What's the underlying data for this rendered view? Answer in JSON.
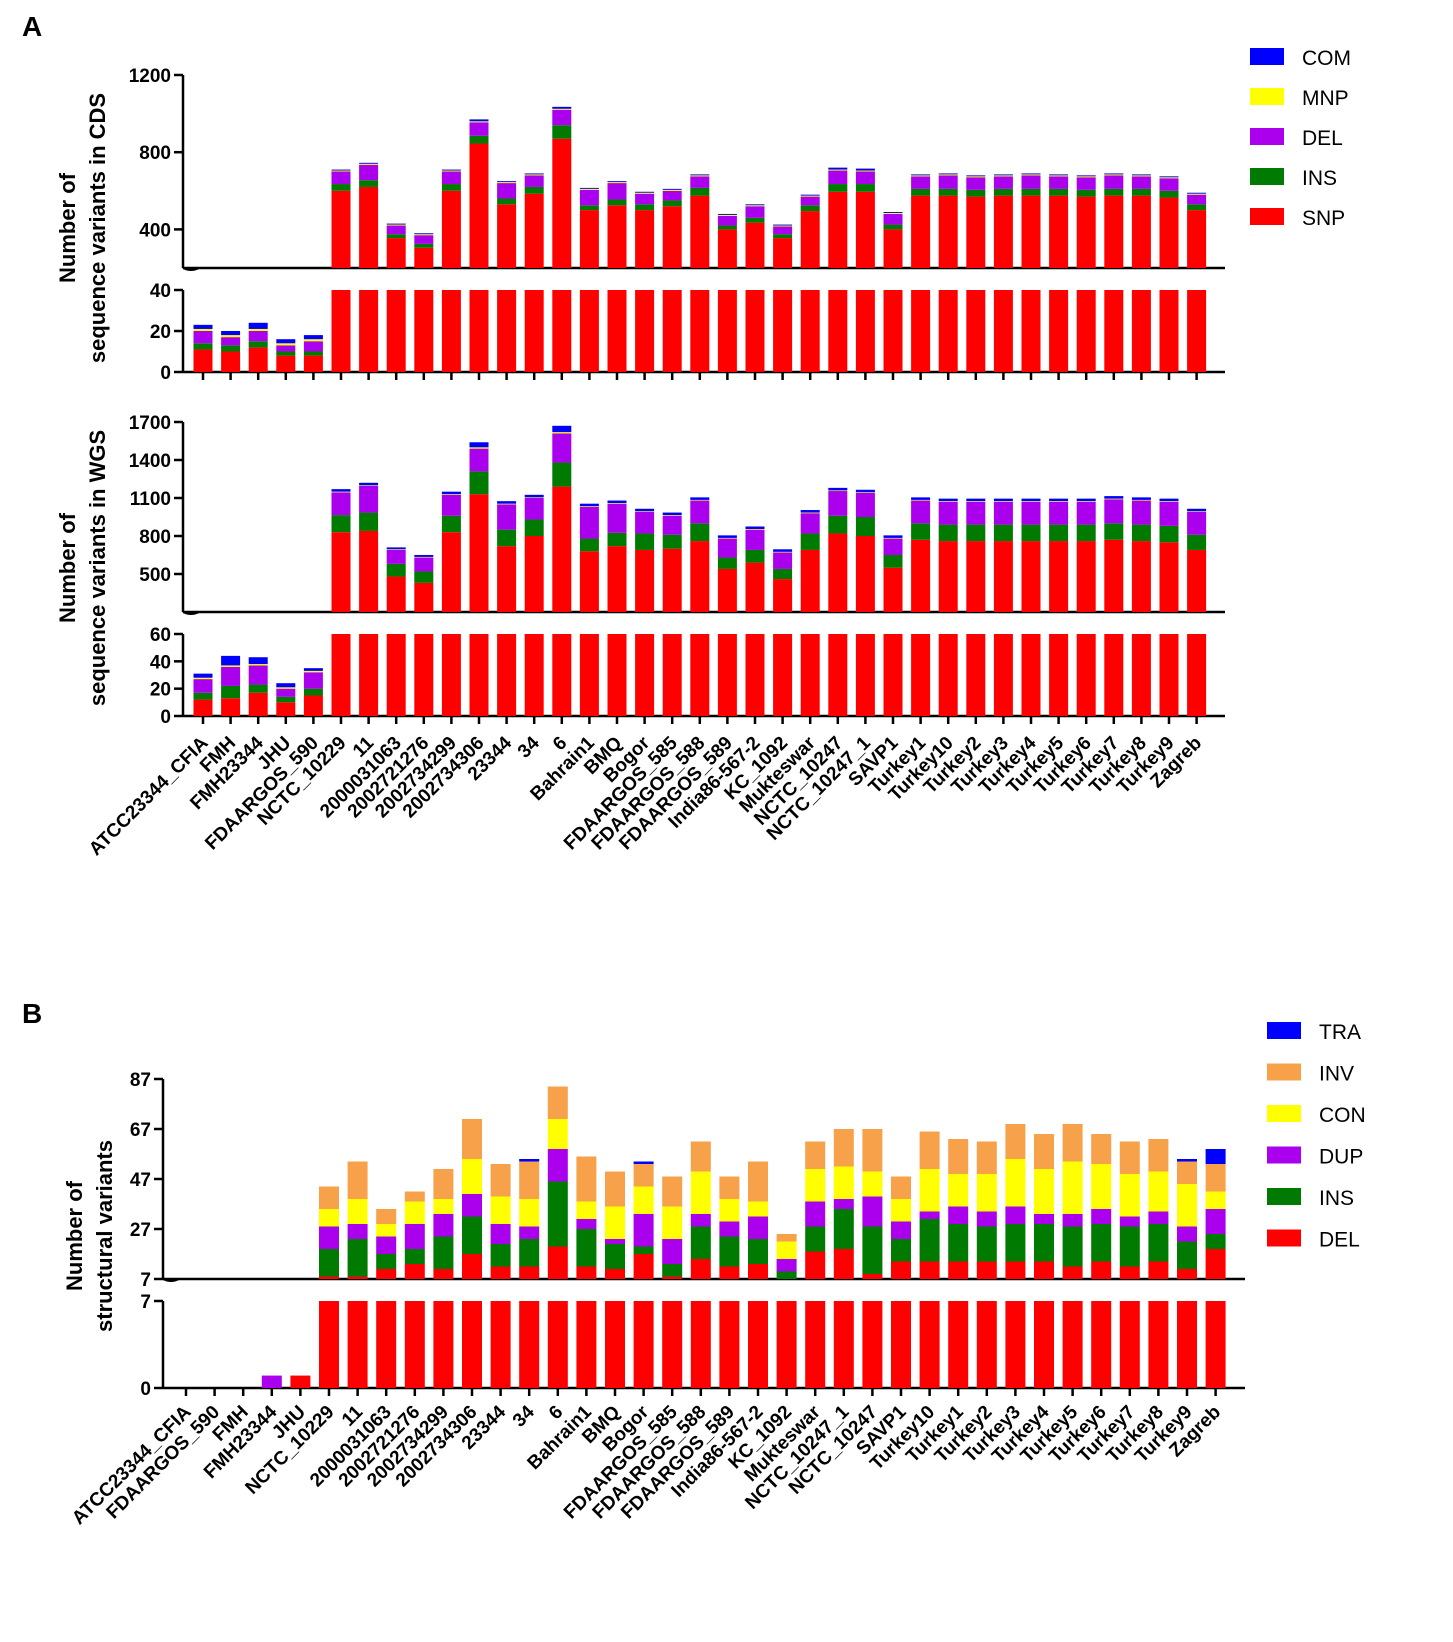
{
  "panel_labels": [
    "A",
    "B"
  ],
  "colors": {
    "COM": "#0000ff",
    "MNP": "#ffff00",
    "DEL_A": "#aa00ee",
    "INS_A": "#007a00",
    "SNP": "#ff0000",
    "TRA": "#0000ff",
    "INV": "#f7a24a",
    "CON": "#ffff00",
    "DUP": "#aa00ee",
    "INS_B": "#007a00",
    "DEL_B": "#ff0000"
  },
  "chart_data": [
    {
      "type": "bar",
      "stacked": true,
      "title": "",
      "ylabel": [
        "Number of",
        "sequence variants in CDS"
      ],
      "axis_break": true,
      "lower_ylim": [
        0,
        40
      ],
      "lower_ticks": [
        "0",
        "20",
        "40"
      ],
      "upper_ylim": [
        200,
        1200
      ],
      "upper_ticks": [
        "400",
        "800",
        "1200"
      ],
      "legend": [
        "COM",
        "MNP",
        "DEL",
        "INS",
        "SNP"
      ],
      "categories": [
        "ATCC23344_CFIA",
        "FMH",
        "FMH23344",
        "JHU",
        "FDAARGOS_590",
        "NCTC_10229",
        "11",
        "2000031063",
        "2002721276",
        "2002734299",
        "2002734306",
        "23344",
        "34",
        "6",
        "Bahrain1",
        "BMQ",
        "Bogor",
        "FDAARGOS_585",
        "FDAARGOS_588",
        "FDAARGOS_589",
        "India86-567-2",
        "KC_1092",
        "Mukteswar",
        "NCTC_10247",
        "NCTC_10247_1",
        "SAVP1",
        "Turkey1",
        "Turkey10",
        "Turkey2",
        "Turkey3",
        "Turkey4",
        "Turkey5",
        "Turkey6",
        "Turkey7",
        "Turkey8",
        "Turkey9",
        "Zagreb"
      ],
      "series": [
        {
          "name": "SNP",
          "values": [
            11,
            10,
            12,
            8,
            8,
            600,
            620,
            355,
            305,
            600,
            845,
            530,
            585,
            870,
            500,
            525,
            500,
            520,
            575,
            400,
            435,
            355,
            495,
            595,
            595,
            400,
            575,
            575,
            570,
            575,
            575,
            575,
            570,
            575,
            575,
            565,
            500
          ]
        },
        {
          "name": "INS",
          "values": [
            3,
            3,
            3,
            2,
            2,
            35,
            35,
            20,
            20,
            35,
            40,
            30,
            35,
            70,
            25,
            30,
            30,
            30,
            40,
            20,
            25,
            20,
            30,
            40,
            40,
            25,
            35,
            35,
            35,
            35,
            35,
            35,
            35,
            35,
            35,
            35,
            30
          ]
        },
        {
          "name": "DEL",
          "values": [
            6,
            4,
            5,
            3,
            5,
            65,
            80,
            45,
            45,
            65,
            70,
            80,
            60,
            80,
            80,
            85,
            55,
            50,
            60,
            50,
            60,
            40,
            45,
            70,
            65,
            55,
            65,
            70,
            65,
            65,
            70,
            65,
            65,
            70,
            65,
            65,
            50
          ]
        },
        {
          "name": "MNP",
          "values": [
            1,
            1,
            1,
            1,
            1,
            5,
            5,
            5,
            5,
            5,
            5,
            5,
            5,
            5,
            5,
            5,
            5,
            5,
            5,
            5,
            5,
            5,
            5,
            5,
            5,
            5,
            5,
            5,
            5,
            5,
            5,
            5,
            5,
            5,
            5,
            5,
            5
          ]
        },
        {
          "name": "COM",
          "values": [
            2,
            2,
            3,
            2,
            2,
            5,
            5,
            5,
            5,
            5,
            10,
            5,
            5,
            10,
            5,
            5,
            5,
            5,
            5,
            5,
            5,
            5,
            5,
            10,
            10,
            5,
            5,
            5,
            5,
            5,
            5,
            5,
            5,
            5,
            5,
            5,
            5
          ]
        }
      ]
    },
    {
      "type": "bar",
      "stacked": true,
      "title": "",
      "ylabel": [
        "Number of",
        "sequence variants in WGS"
      ],
      "axis_break": true,
      "lower_ylim": [
        0,
        60
      ],
      "lower_ticks": [
        "0",
        "20",
        "40",
        "60"
      ],
      "upper_ylim": [
        200,
        1700
      ],
      "upper_ticks": [
        "500",
        "800",
        "1100",
        "1400",
        "1700"
      ],
      "categories": [
        "ATCC23344_CFIA",
        "FMH",
        "FMH23344",
        "JHU",
        "FDAARGOS_590",
        "NCTC_10229",
        "11",
        "2000031063",
        "2002721276",
        "2002734299",
        "2002734306",
        "23344",
        "34",
        "6",
        "Bahrain1",
        "BMQ",
        "Bogor",
        "FDAARGOS_585",
        "FDAARGOS_588",
        "FDAARGOS_589",
        "India86-567-2",
        "KC_1092",
        "Mukteswar",
        "NCTC_10247",
        "NCTC_10247_1",
        "SAVP1",
        "Turkey1",
        "Turkey10",
        "Turkey2",
        "Turkey3",
        "Turkey4",
        "Turkey5",
        "Turkey6",
        "Turkey7",
        "Turkey8",
        "Turkey9",
        "Zagreb"
      ],
      "series": [
        {
          "name": "SNP",
          "values": [
            12,
            13,
            17,
            10,
            15,
            830,
            840,
            480,
            430,
            830,
            1130,
            720,
            800,
            1190,
            680,
            720,
            690,
            700,
            760,
            540,
            590,
            460,
            690,
            820,
            800,
            550,
            770,
            760,
            760,
            760,
            760,
            760,
            760,
            770,
            760,
            750,
            690
          ]
        },
        {
          "name": "INS",
          "values": [
            5,
            9,
            6,
            4,
            5,
            135,
            145,
            100,
            90,
            130,
            180,
            130,
            130,
            190,
            100,
            105,
            130,
            110,
            140,
            90,
            100,
            80,
            130,
            140,
            150,
            100,
            130,
            130,
            130,
            130,
            130,
            130,
            130,
            130,
            130,
            130,
            120
          ]
        },
        {
          "name": "DEL",
          "values": [
            10,
            14,
            14,
            6,
            12,
            180,
            210,
            110,
            110,
            165,
            180,
            200,
            170,
            230,
            250,
            230,
            170,
            150,
            180,
            150,
            160,
            130,
            160,
            195,
            190,
            130,
            180,
            180,
            180,
            180,
            180,
            180,
            180,
            190,
            190,
            190,
            180
          ]
        },
        {
          "name": "MNP",
          "values": [
            1,
            1,
            1,
            1,
            1,
            5,
            5,
            5,
            5,
            5,
            10,
            5,
            5,
            10,
            5,
            5,
            5,
            5,
            5,
            5,
            5,
            5,
            5,
            5,
            5,
            5,
            5,
            5,
            5,
            5,
            5,
            5,
            5,
            5,
            5,
            5,
            5
          ]
        },
        {
          "name": "COM",
          "values": [
            3,
            7,
            5,
            3,
            2,
            20,
            20,
            15,
            15,
            20,
            40,
            20,
            20,
            50,
            20,
            20,
            20,
            20,
            20,
            20,
            20,
            20,
            20,
            20,
            20,
            20,
            20,
            20,
            20,
            20,
            20,
            20,
            20,
            20,
            20,
            20,
            20
          ]
        }
      ]
    },
    {
      "type": "bar",
      "stacked": true,
      "title": "",
      "ylabel": [
        "Number of",
        "structural variants"
      ],
      "axis_break": true,
      "lower_ylim": [
        0,
        7
      ],
      "lower_ticks": [
        "0",
        "7"
      ],
      "upper_ylim": [
        7,
        87
      ],
      "upper_ticks": [
        "7",
        "27",
        "47",
        "67",
        "87"
      ],
      "legend": [
        "TRA",
        "INV",
        "CON",
        "DUP",
        "INS",
        "DEL"
      ],
      "categories": [
        "ATCC23344_CFIA",
        "FDAARGOS_590",
        "FMH",
        "FMH23344",
        "JHU",
        "NCTC_10229",
        "11",
        "2000031063",
        "2002721276",
        "2002734299",
        "2002734306",
        "23344",
        "34",
        "6",
        "Bahrain1",
        "BMQ",
        "Bogor",
        "FDAARGOS_585",
        "FDAARGOS_588",
        "FDAARGOS_589",
        "India86-567-2",
        "KC_1092",
        "Mukteswar",
        "NCTC_10247_1",
        "NCTC_10247",
        "SAVP1",
        "Turkey10",
        "Turkey1",
        "Turkey2",
        "Turkey3",
        "Turkey4",
        "Turkey5",
        "Turkey6",
        "Turkey7",
        "Turkey8",
        "Turkey9",
        "Zagreb"
      ],
      "series": [
        {
          "name": "DEL",
          "values": [
            0,
            0,
            0,
            0,
            1,
            8,
            8,
            11,
            13,
            11,
            17,
            12,
            12,
            20,
            12,
            11,
            17,
            8,
            15,
            12,
            13,
            7,
            18,
            19,
            9,
            14,
            14,
            14,
            14,
            14,
            14,
            12,
            14,
            12,
            14,
            11,
            19
          ]
        },
        {
          "name": "INS",
          "values": [
            0,
            0,
            0,
            0,
            0,
            11,
            15,
            6,
            6,
            13,
            15,
            9,
            11,
            26,
            15,
            10,
            3,
            5,
            13,
            12,
            10,
            3,
            10,
            16,
            19,
            9,
            17,
            15,
            14,
            15,
            15,
            16,
            15,
            16,
            15,
            11,
            6
          ]
        },
        {
          "name": "DUP",
          "values": [
            0,
            0,
            0,
            1,
            0,
            9,
            6,
            7,
            10,
            9,
            9,
            8,
            5,
            13,
            4,
            2,
            13,
            10,
            5,
            6,
            9,
            5,
            10,
            4,
            12,
            7,
            3,
            7,
            6,
            7,
            4,
            5,
            6,
            4,
            5,
            6,
            10
          ]
        },
        {
          "name": "CON",
          "values": [
            0,
            0,
            0,
            0,
            0,
            7,
            10,
            5,
            9,
            6,
            14,
            11,
            11,
            12,
            7,
            13,
            11,
            13,
            17,
            9,
            6,
            7,
            13,
            13,
            10,
            9,
            17,
            13,
            15,
            19,
            18,
            21,
            18,
            17,
            16,
            17,
            7
          ]
        },
        {
          "name": "INV",
          "values": [
            0,
            0,
            0,
            0,
            0,
            9,
            15,
            6,
            4,
            12,
            16,
            13,
            15,
            13,
            18,
            14,
            9,
            12,
            12,
            9,
            16,
            3,
            11,
            15,
            17,
            9,
            15,
            14,
            13,
            14,
            14,
            15,
            12,
            13,
            13,
            9,
            11
          ]
        },
        {
          "name": "TRA",
          "values": [
            0,
            0,
            0,
            0,
            0,
            0,
            0,
            0,
            0,
            0,
            0,
            0,
            1,
            0,
            0,
            0,
            1,
            0,
            0,
            0,
            0,
            0,
            0,
            0,
            0,
            0,
            0,
            0,
            0,
            0,
            0,
            0,
            0,
            0,
            0,
            1,
            6
          ]
        }
      ]
    }
  ]
}
